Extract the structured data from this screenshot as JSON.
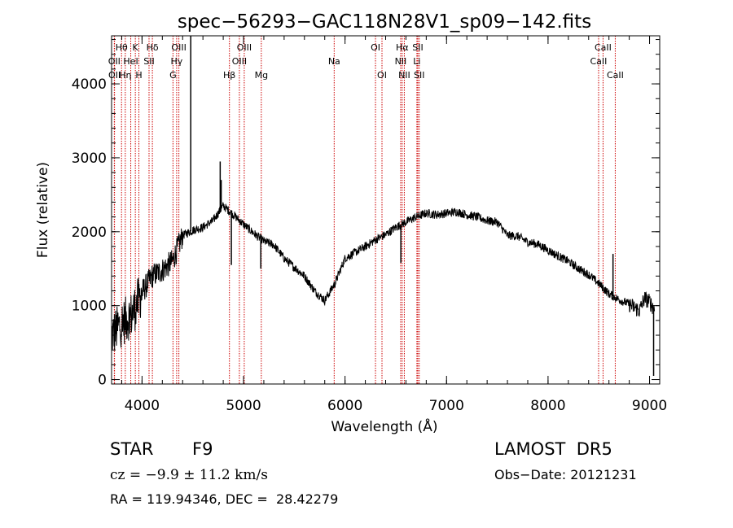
{
  "chart_data": {
    "type": "line",
    "title": "spec−56293−GAC118N28V1_sp09−142.fits",
    "xlabel": "Wavelength (Å)",
    "ylabel": "Flux (relative)",
    "xlim": [
      3700,
      9100
    ],
    "ylim": [
      -60,
      4650
    ],
    "xticks": [
      4000,
      5000,
      6000,
      7000,
      8000,
      9000
    ],
    "yticks": [
      0,
      1000,
      2000,
      3000,
      4000
    ],
    "grid": false,
    "line_color": "#000000",
    "marker_color": "#cc0000",
    "continuum": [
      [
        3700,
        600
      ],
      [
        3800,
        760
      ],
      [
        3900,
        880
      ],
      [
        4000,
        1180
      ],
      [
        4100,
        1400
      ],
      [
        4200,
        1480
      ],
      [
        4300,
        1600
      ],
      [
        4400,
        1950
      ],
      [
        4500,
        2020
      ],
      [
        4600,
        2060
      ],
      [
        4700,
        2150
      ],
      [
        4800,
        2350
      ],
      [
        4900,
        2230
      ],
      [
        5000,
        2100
      ],
      [
        5100,
        1980
      ],
      [
        5200,
        1870
      ],
      [
        5300,
        1820
      ],
      [
        5400,
        1640
      ],
      [
        5500,
        1520
      ],
      [
        5600,
        1400
      ],
      [
        5700,
        1200
      ],
      [
        5800,
        1070
      ],
      [
        5900,
        1300
      ],
      [
        6000,
        1640
      ],
      [
        6100,
        1720
      ],
      [
        6200,
        1800
      ],
      [
        6300,
        1890
      ],
      [
        6400,
        1960
      ],
      [
        6500,
        2060
      ],
      [
        6600,
        2130
      ],
      [
        6700,
        2200
      ],
      [
        6800,
        2250
      ],
      [
        6900,
        2230
      ],
      [
        7000,
        2250
      ],
      [
        7100,
        2270
      ],
      [
        7200,
        2230
      ],
      [
        7300,
        2200
      ],
      [
        7400,
        2150
      ],
      [
        7500,
        2130
      ],
      [
        7600,
        1950
      ],
      [
        7700,
        1940
      ],
      [
        7800,
        1860
      ],
      [
        7900,
        1830
      ],
      [
        8000,
        1750
      ],
      [
        8100,
        1670
      ],
      [
        8200,
        1600
      ],
      [
        8300,
        1500
      ],
      [
        8400,
        1420
      ],
      [
        8500,
        1300
      ],
      [
        8600,
        1160
      ],
      [
        8700,
        1080
      ],
      [
        8800,
        1020
      ],
      [
        8900,
        930
      ],
      [
        8950,
        1100
      ],
      [
        9000,
        1050
      ],
      [
        9050,
        950
      ]
    ],
    "features": [
      [
        4480,
        4650
      ],
      [
        4770,
        2950
      ],
      [
        4780,
        2700
      ],
      [
        4880,
        1550
      ],
      [
        5170,
        1500
      ],
      [
        5890,
        1300
      ],
      [
        6550,
        1580
      ],
      [
        8640,
        1700
      ],
      [
        9040,
        50
      ]
    ],
    "lines": [
      {
        "name": "Hθ",
        "x": 3798,
        "row": 1
      },
      {
        "name": "OII",
        "x": 3727,
        "row": 2
      },
      {
        "name": "OII",
        "x": 3729,
        "row": 3
      },
      {
        "name": "Hη",
        "x": 3835,
        "row": 3
      },
      {
        "name": "HeI",
        "x": 3889,
        "row": 2
      },
      {
        "name": "K",
        "x": 3934,
        "row": 1
      },
      {
        "name": "H",
        "x": 3969,
        "row": 3
      },
      {
        "name": "Hδ",
        "x": 4102,
        "row": 1
      },
      {
        "name": "SII",
        "x": 4069,
        "row": 2
      },
      {
        "name": "OIII",
        "x": 4363,
        "row": 1
      },
      {
        "name": "Hγ",
        "x": 4341,
        "row": 2
      },
      {
        "name": "G",
        "x": 4305,
        "row": 3
      },
      {
        "name": "Hβ",
        "x": 4861,
        "row": 3
      },
      {
        "name": "OIII",
        "x": 4959,
        "row": 2
      },
      {
        "name": "OIII",
        "x": 5007,
        "row": 1
      },
      {
        "name": "Mg",
        "x": 5175,
        "row": 3
      },
      {
        "name": "Na",
        "x": 5893,
        "row": 2
      },
      {
        "name": "OI",
        "x": 6300,
        "row": 1
      },
      {
        "name": "OI",
        "x": 6364,
        "row": 3
      },
      {
        "name": "Hα",
        "x": 6563,
        "row": 1
      },
      {
        "name": "NII",
        "x": 6548,
        "row": 2
      },
      {
        "name": "NII",
        "x": 6584,
        "row": 3
      },
      {
        "name": "SII",
        "x": 6717,
        "row": 1
      },
      {
        "name": "Li",
        "x": 6708,
        "row": 2
      },
      {
        "name": "SII",
        "x": 6731,
        "row": 3
      },
      {
        "name": "CaII",
        "x": 8542,
        "row": 1
      },
      {
        "name": "CaII",
        "x": 8498,
        "row": 2
      },
      {
        "name": "CaII",
        "x": 8662,
        "row": 3
      }
    ]
  },
  "info": {
    "object_class": "STAR",
    "subclass": "F9",
    "survey": "LAMOST  DR5",
    "cz": "cz = −9.9 ± 11.2 km/s",
    "obs_date": "Obs−Date: 20121231",
    "coords": "RA = 119.94346, DEC =  28.42279"
  }
}
